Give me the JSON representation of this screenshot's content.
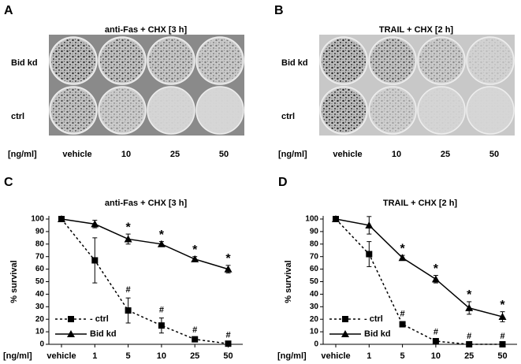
{
  "panels": [
    {
      "letter": "A",
      "title": "anti-Fas + CHX [3 h]",
      "rows": [
        "Bid kd",
        "ctrl"
      ],
      "unit": "[ng/ml]",
      "columns": [
        "vehicle",
        "10",
        "25",
        "50"
      ]
    },
    {
      "letter": "B",
      "title": "TRAIL + CHX [2 h]",
      "rows": [
        "Bid kd",
        "ctrl"
      ],
      "unit": "[ng/ml]",
      "columns": [
        "vehicle",
        "10",
        "25",
        "50"
      ]
    }
  ],
  "chart_data": [
    {
      "type": "line",
      "letter": "C",
      "title": "anti-Fas + CHX [3 h]",
      "x_label": "[ng/ml]",
      "y_label": "% survival",
      "categories": [
        "vehicle",
        "1",
        "5",
        "10",
        "25",
        "50"
      ],
      "ylim": [
        0,
        100
      ],
      "yticks": [
        0,
        10,
        20,
        30,
        40,
        50,
        60,
        70,
        80,
        90,
        100
      ],
      "legend": "lower left",
      "series": [
        {
          "name": "- ctrl",
          "color": "#000000",
          "dash": true,
          "marker": "square",
          "values": [
            100,
            67,
            27,
            15,
            4,
            0.5
          ],
          "errors": [
            0,
            18,
            10,
            6,
            1,
            0.5
          ],
          "significance": [
            null,
            null,
            "#",
            "#",
            "#",
            "#"
          ]
        },
        {
          "name": "Bid kd",
          "color": "#000000",
          "dash": false,
          "marker": "triangle",
          "values": [
            100,
            96,
            84,
            80,
            68,
            60
          ],
          "errors": [
            0,
            3,
            4,
            2,
            2,
            3
          ],
          "significance": [
            null,
            null,
            "*",
            "*",
            "*",
            "*"
          ]
        }
      ]
    },
    {
      "type": "line",
      "letter": "D",
      "title": "TRAIL + CHX [2 h]",
      "x_label": "[ng/ml]",
      "y_label": "% survival",
      "categories": [
        "vehicle",
        "1",
        "5",
        "10",
        "25",
        "50"
      ],
      "ylim": [
        0,
        100
      ],
      "yticks": [
        0,
        10,
        20,
        30,
        40,
        50,
        60,
        70,
        80,
        90,
        100
      ],
      "legend": "lower left",
      "series": [
        {
          "name": "- ctrl",
          "color": "#000000",
          "dash": true,
          "marker": "square",
          "values": [
            100,
            72,
            16,
            2.5,
            0,
            0
          ],
          "errors": [
            0,
            10,
            2,
            1,
            0,
            0
          ],
          "significance": [
            null,
            null,
            "#",
            "#",
            "#",
            "#"
          ]
        },
        {
          "name": "Bid kd",
          "color": "#000000",
          "dash": false,
          "marker": "triangle",
          "values": [
            100,
            95,
            69,
            52,
            29,
            22
          ],
          "errors": [
            0,
            7,
            2,
            3,
            5,
            4
          ],
          "significance": [
            null,
            null,
            "*",
            "*",
            "*",
            "*"
          ]
        }
      ]
    }
  ]
}
